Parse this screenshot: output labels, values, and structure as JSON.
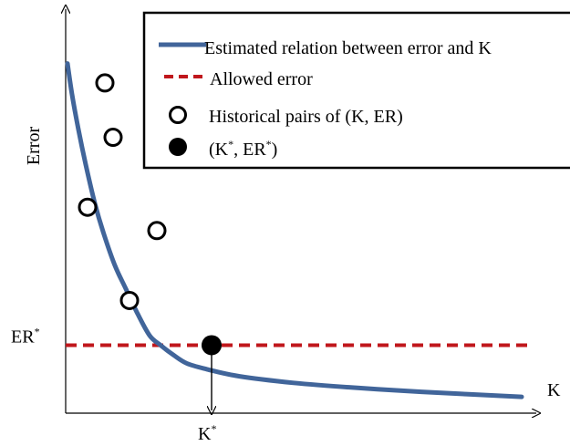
{
  "chart_data": {
    "type": "line",
    "title": "",
    "xlabel": "K",
    "ylabel": "Error",
    "grid": false,
    "legend_placement": "top-right",
    "legend": [
      {
        "label": "Estimated relation between error and K",
        "marker": "line",
        "color": "#41659a"
      },
      {
        "label": "Allowed error",
        "marker": "dashed-line",
        "color": "#c0171c"
      },
      {
        "label": "Historical pairs of (K, ER)",
        "marker": "open-circle",
        "color": "#000000"
      },
      {
        "label": "(K*, ER*)",
        "marker": "filled-circle",
        "color": "#000000"
      }
    ],
    "series": [
      {
        "name": "Estimated relation between error and K",
        "kind": "curve",
        "color": "#41659a",
        "points": [
          [
            0.2,
            90
          ],
          [
            0.7,
            82
          ],
          [
            1.4,
            73
          ],
          [
            2.2,
            64
          ],
          [
            3.2,
            54
          ],
          [
            4.2,
            46
          ],
          [
            5.4,
            38
          ],
          [
            6.6,
            32
          ],
          [
            7.8,
            26
          ],
          [
            9.2,
            20
          ],
          [
            10.4,
            17.5
          ],
          [
            11.8,
            15
          ],
          [
            13.3,
            12.8
          ],
          [
            15.5,
            11.3
          ],
          [
            19,
            9.5
          ],
          [
            25,
            7.8
          ],
          [
            32,
            6.5
          ],
          [
            39,
            5.5
          ],
          [
            50,
            4.2
          ]
        ]
      },
      {
        "name": "Allowed error",
        "kind": "hline",
        "color": "#c0171c",
        "y": 17.5
      },
      {
        "name": "Historical pairs of (K, ER)",
        "kind": "open-points",
        "color": "#000000",
        "points": [
          [
            4.3,
            85
          ],
          [
            5.2,
            71
          ],
          [
            2.4,
            53
          ],
          [
            10,
            47
          ],
          [
            7,
            29
          ]
        ]
      },
      {
        "name": "(K*, ER*)",
        "kind": "filled-point",
        "color": "#000000",
        "points": [
          [
            16,
            17.5
          ]
        ]
      }
    ],
    "annotations": [
      {
        "text": "ER",
        "sup": "*",
        "at": "y-axis, at allowed error level"
      },
      {
        "text": "K",
        "sup": "*",
        "at": "x-axis, below the arrow from (K*, ER*)"
      }
    ],
    "xlim": [
      0,
      50
    ],
    "ylim": [
      0,
      100
    ]
  }
}
